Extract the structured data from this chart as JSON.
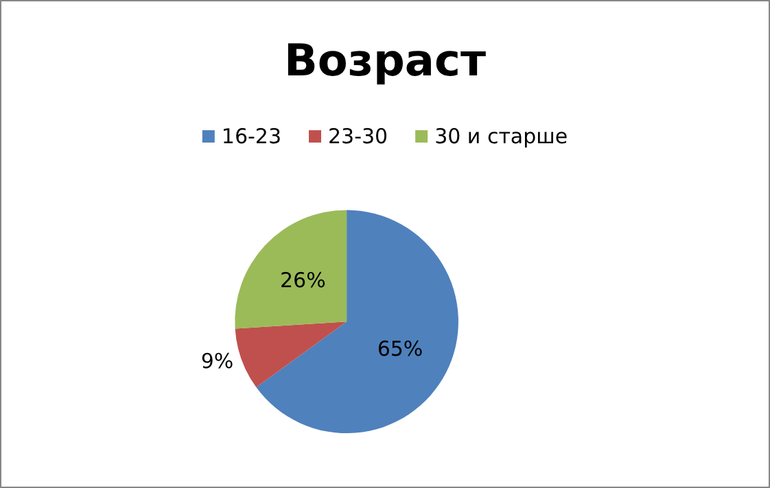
{
  "chart_data": {
    "type": "pie",
    "title": "Возраст",
    "categories": [
      "16-23",
      "23-30",
      "30 и старше"
    ],
    "values": [
      65,
      9,
      26
    ],
    "colors": [
      "#4f81bd",
      "#c0504d",
      "#9bbb59"
    ],
    "value_labels": [
      "65%",
      "9%",
      "26%"
    ],
    "legend": "top"
  }
}
